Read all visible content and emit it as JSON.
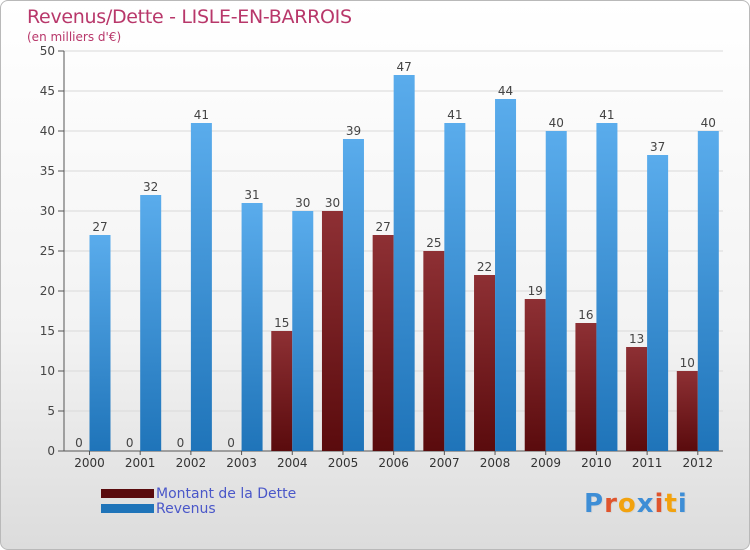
{
  "header": {
    "title": "Revenus/Dette - LISLE-EN-BARROIS",
    "subtitle": "(en milliers d'€)"
  },
  "legend": {
    "debt_label": "Montant de la Dette",
    "revenue_label": "Revenus"
  },
  "logo": {
    "text": "Proxiti",
    "letters": [
      "P",
      "r",
      "o",
      "x",
      "i",
      "t",
      "i"
    ],
    "colors": [
      "#3e8ed6",
      "#e0542c",
      "#f2a20e",
      "#3e8ed6",
      "#e0542c",
      "#f2a20e",
      "#3e8ed6"
    ]
  },
  "colors": {
    "debt_top": "#8e3034",
    "debt_bottom": "#5a0b0d",
    "revenue_top": "#5aacec",
    "revenue_bottom": "#1f74b9",
    "title": "#b8376a",
    "legend_text": "#4a57c9"
  },
  "chart_data": {
    "type": "bar",
    "title": "Revenus/Dette - LISLE-EN-BARROIS",
    "ylabel": "(en milliers d'€)",
    "xlabel": "",
    "ylim": [
      0,
      50
    ],
    "yticks": [
      0,
      5,
      10,
      15,
      20,
      25,
      30,
      35,
      40,
      45,
      50
    ],
    "grid": true,
    "legend_position": "bottom-left",
    "categories": [
      "2000",
      "2001",
      "2002",
      "2003",
      "2004",
      "2005",
      "2006",
      "2007",
      "2008",
      "2009",
      "2010",
      "2011",
      "2012"
    ],
    "series": [
      {
        "name": "Montant de la Dette",
        "values": [
          0,
          0,
          0,
          0,
          15,
          30,
          27,
          25,
          22,
          19,
          16,
          13,
          10
        ]
      },
      {
        "name": "Revenus",
        "values": [
          27,
          32,
          41,
          31,
          30,
          39,
          47,
          41,
          44,
          40,
          41,
          37,
          40
        ]
      }
    ]
  }
}
